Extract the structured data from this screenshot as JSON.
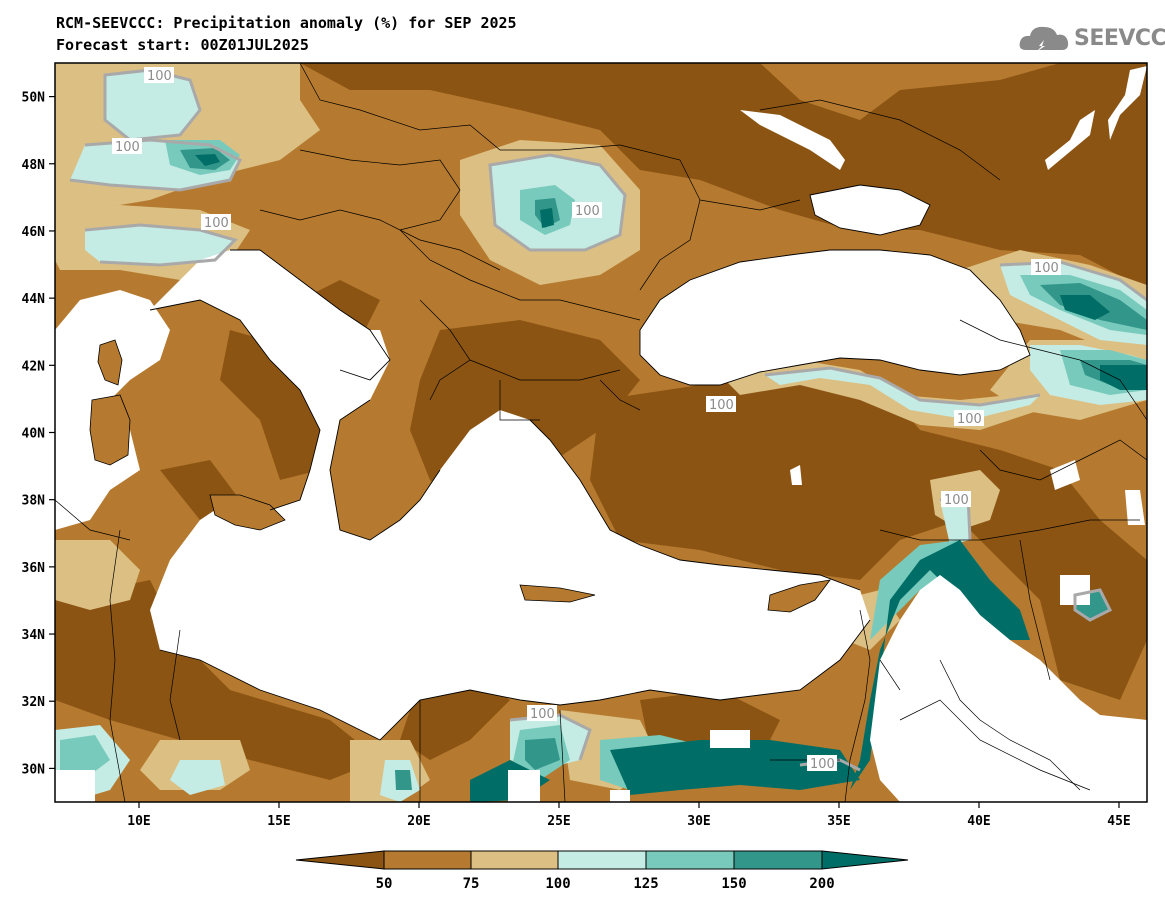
{
  "title_line1": "RCM-SEEVCCC: Precipitation anomaly (%) for SEP 2025",
  "title_line2": "Forecast start: 00Z01JUL2025",
  "logo": {
    "icon": "cloud-logo-icon",
    "text": "SEEVCCC"
  },
  "map": {
    "region": "Mediterranean / Black Sea",
    "lon_range": [
      7,
      46
    ],
    "lat_range": [
      29,
      51
    ],
    "y_ticks": [
      "50N",
      "48N",
      "46N",
      "44N",
      "42N",
      "40N",
      "38N",
      "36N",
      "34N",
      "32N",
      "30N"
    ],
    "x_ticks": [
      "10E",
      "15E",
      "20E",
      "25E",
      "30E",
      "35E",
      "40E",
      "45E"
    ],
    "contour_labels": [
      "100",
      "100",
      "100",
      "100",
      "100",
      "100",
      "100",
      "100",
      "100",
      "100"
    ]
  },
  "colorbar": {
    "levels": [
      "50",
      "75",
      "100",
      "125",
      "150",
      "200"
    ],
    "colors": [
      "#8b5413",
      "#b57a2f",
      "#dcbf82",
      "#c4ebe4",
      "#78cbbc",
      "#33968a",
      "#006e66"
    ]
  }
}
